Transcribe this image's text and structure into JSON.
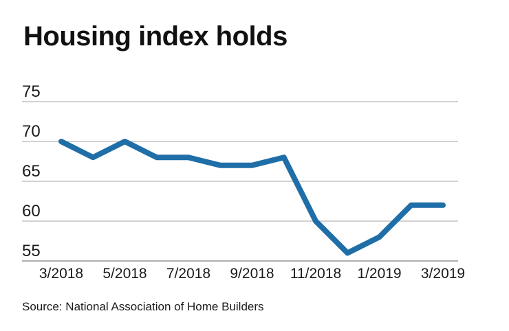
{
  "header": {
    "title": "Housing index holds"
  },
  "footer": {
    "source": "Source: National Association of Home Builders"
  },
  "chart_data": {
    "type": "line",
    "title": "Housing index holds",
    "x": [
      "3/2018",
      "4/2018",
      "5/2018",
      "6/2018",
      "7/2018",
      "8/2018",
      "9/2018",
      "10/2018",
      "11/2018",
      "12/2018",
      "1/2019",
      "2/2019",
      "3/2019"
    ],
    "x_tick_labels": [
      "3/2018",
      "5/2018",
      "7/2018",
      "9/2018",
      "11/2018",
      "1/2019",
      "3/2019"
    ],
    "series": [
      {
        "values": [
          70,
          68,
          70,
          68,
          68,
          67,
          67,
          68,
          60,
          56,
          58,
          62,
          62
        ],
        "color": "#1f6ea8",
        "line_width": 8
      }
    ],
    "ylim": [
      55,
      75
    ],
    "y_ticks": [
      55,
      60,
      65,
      70,
      75
    ],
    "xlabel": "",
    "ylabel": "",
    "grid": "horizontal",
    "legend_position": "none",
    "source": "Source: National Association of Home Builders",
    "colors": {
      "background": "#ffffff",
      "gridline": "#a6a6a6",
      "axis_baseline": "#b0b0b0",
      "text": "#1a1a1a",
      "title_text": "#111111",
      "line": "#1f6ea8"
    }
  }
}
